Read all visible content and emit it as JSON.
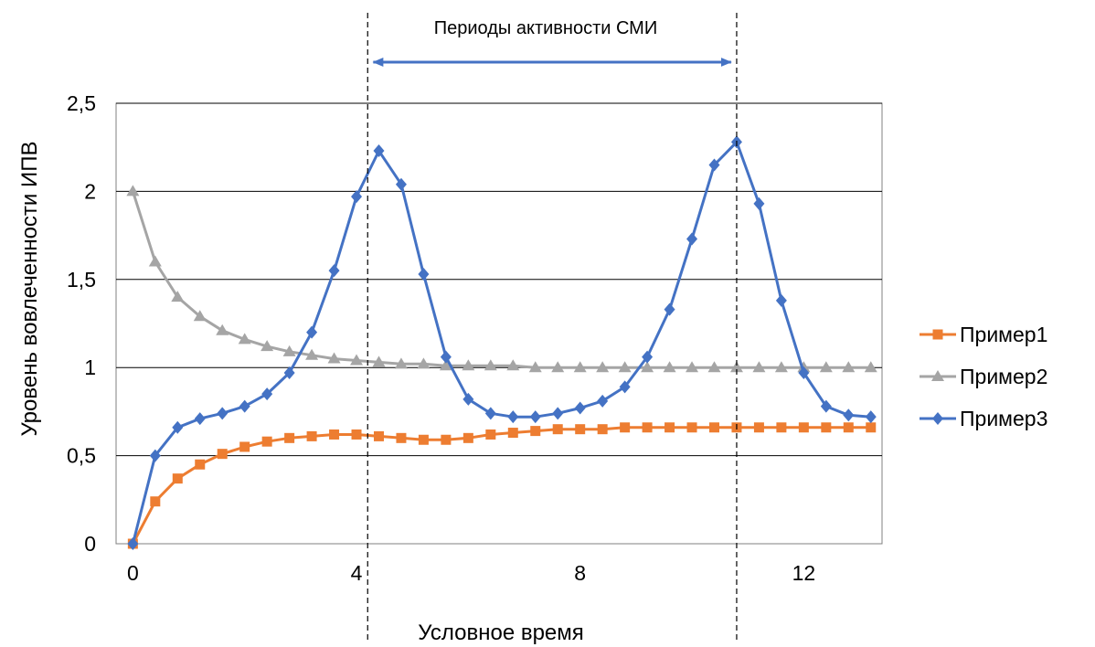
{
  "chart_data": {
    "type": "line",
    "title": "",
    "xlabel": "Условное время",
    "ylabel": "Уровень вовлеченности ИПВ",
    "xlim": [
      -0.3,
      13.4
    ],
    "ylim": [
      0,
      2.5
    ],
    "xticks": [
      0,
      4,
      8,
      12
    ],
    "xtick_labels": [
      "0",
      "4",
      "8",
      "12"
    ],
    "yticks": [
      0,
      0.5,
      1,
      1.5,
      2,
      2.5
    ],
    "ytick_labels": [
      "0",
      "0,5",
      "1",
      "1,5",
      "2",
      "2,5"
    ],
    "grid": "horizontal",
    "legend_position": "right",
    "annotation": {
      "text": "Периоды активности СМИ",
      "x_start": 4.3,
      "x_end": 10.7,
      "boundaries": [
        4.2,
        10.8
      ],
      "color": "#4472C4"
    },
    "series": [
      {
        "name": "Пример1",
        "color": "#ED7D31",
        "marker": "square",
        "x": [
          0,
          0.4,
          0.8,
          1.2,
          1.6,
          2,
          2.4,
          2.8,
          3.2,
          3.6,
          4,
          4.4,
          4.8,
          5.2,
          5.6,
          6,
          6.4,
          6.8,
          7.2,
          7.6,
          8,
          8.4,
          8.8,
          9.2,
          9.6,
          10,
          10.4,
          10.8,
          11.2,
          11.6,
          12,
          12.4,
          12.8,
          13.2
        ],
        "values": [
          0,
          0.24,
          0.37,
          0.45,
          0.51,
          0.55,
          0.58,
          0.6,
          0.61,
          0.62,
          0.62,
          0.61,
          0.6,
          0.59,
          0.59,
          0.6,
          0.62,
          0.63,
          0.64,
          0.65,
          0.65,
          0.65,
          0.66,
          0.66,
          0.66,
          0.66,
          0.66,
          0.66,
          0.66,
          0.66,
          0.66,
          0.66,
          0.66,
          0.66
        ]
      },
      {
        "name": "Пример2",
        "color": "#A5A5A5",
        "marker": "triangle",
        "x": [
          0,
          0.4,
          0.8,
          1.2,
          1.6,
          2,
          2.4,
          2.8,
          3.2,
          3.6,
          4,
          4.4,
          4.8,
          5.2,
          5.6,
          6,
          6.4,
          6.8,
          7.2,
          7.6,
          8,
          8.4,
          8.8,
          9.2,
          9.6,
          10,
          10.4,
          10.8,
          11.2,
          11.6,
          12,
          12.4,
          12.8,
          13.2
        ],
        "values": [
          2,
          1.6,
          1.4,
          1.29,
          1.21,
          1.16,
          1.12,
          1.09,
          1.07,
          1.05,
          1.04,
          1.03,
          1.02,
          1.02,
          1.01,
          1.01,
          1.01,
          1.01,
          1.0,
          1.0,
          1.0,
          1.0,
          1.0,
          1.0,
          1.0,
          1.0,
          1.0,
          1.0,
          1.0,
          1.0,
          1.0,
          1.0,
          1.0,
          1.0
        ]
      },
      {
        "name": "Пример3",
        "color": "#4472C4",
        "marker": "diamond",
        "x": [
          0,
          0.4,
          0.8,
          1.2,
          1.6,
          2,
          2.4,
          2.8,
          3.2,
          3.6,
          4,
          4.4,
          4.8,
          5.2,
          5.6,
          6,
          6.4,
          6.8,
          7.2,
          7.6,
          8,
          8.4,
          8.8,
          9.2,
          9.6,
          10,
          10.4,
          10.8,
          11.2,
          11.6,
          12,
          12.4,
          12.8,
          13.2
        ],
        "values": [
          0,
          0.5,
          0.66,
          0.71,
          0.74,
          0.78,
          0.85,
          0.97,
          1.2,
          1.55,
          1.97,
          2.23,
          2.04,
          1.53,
          1.06,
          0.82,
          0.74,
          0.72,
          0.72,
          0.74,
          0.77,
          0.81,
          0.89,
          1.06,
          1.33,
          1.73,
          2.15,
          2.28,
          1.93,
          1.38,
          0.97,
          0.78,
          0.73,
          0.72
        ]
      }
    ]
  }
}
